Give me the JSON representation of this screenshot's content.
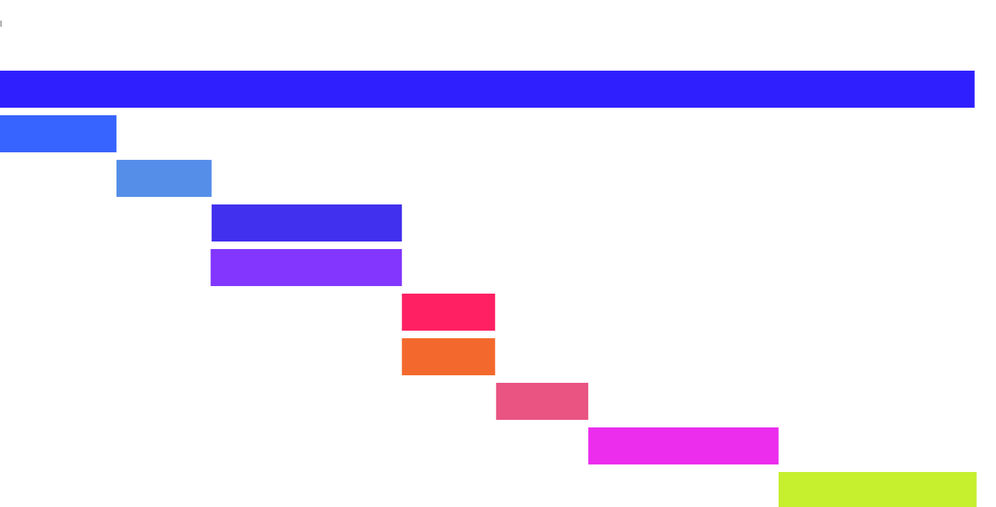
{
  "chart_data": {
    "type": "gantt",
    "title": "",
    "xlabel": "",
    "ylabel": "",
    "xlim": [
      0,
      10.26
    ],
    "grid": false,
    "legend": "none",
    "tasks": [
      {
        "start": 0.0,
        "end": 10.04,
        "color": "#2f1fff"
      },
      {
        "start": 0.0,
        "end": 1.2,
        "color": "#3764fe"
      },
      {
        "start": 1.2,
        "end": 2.18,
        "color": "#548ee8"
      },
      {
        "start": 2.18,
        "end": 4.14,
        "color": "#4130ed"
      },
      {
        "start": 2.17,
        "end": 4.14,
        "color": "#8236fe"
      },
      {
        "start": 4.14,
        "end": 5.1,
        "color": "#fe2062"
      },
      {
        "start": 4.14,
        "end": 5.1,
        "color": "#f3692d"
      },
      {
        "start": 5.11,
        "end": 6.06,
        "color": "#e95482"
      },
      {
        "start": 6.06,
        "end": 8.02,
        "color": "#ec2dee"
      },
      {
        "start": 8.02,
        "end": 10.06,
        "color": "#c6ef2d"
      }
    ]
  }
}
